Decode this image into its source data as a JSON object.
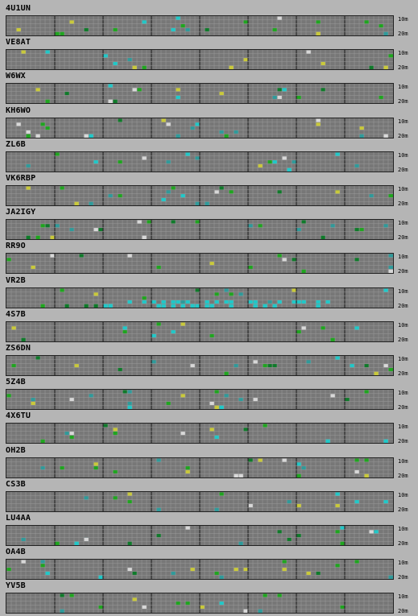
{
  "band_labels": {
    "top": "10m",
    "bottom": "20m"
  },
  "colors": {
    "background": "#b5b5b5",
    "grid_fill": "#777777",
    "grid_line": "#9a9a9a",
    "hour_divider": "#2a2a2a",
    "spot_green": "#1fa51f",
    "spot_dark_green": "#0f7a2a",
    "spot_yellow": "#c9c93a",
    "spot_cyan": "#20c8c8",
    "spot_white": "#d8d8d8",
    "spot_teal": "#2f9a9a"
  },
  "stations": [
    {
      "call": "4U1UN",
      "spots": []
    },
    {
      "call": "VE8AT",
      "spots": []
    },
    {
      "call": "W6WX",
      "spots": []
    },
    {
      "call": "KH6WO",
      "spots": []
    },
    {
      "call": "ZL6B",
      "spots": []
    },
    {
      "call": "VK6RBP",
      "spots": []
    },
    {
      "call": "JA2IGY",
      "spots": []
    },
    {
      "call": "RR9O",
      "spots": []
    },
    {
      "call": "VR2B",
      "spots": []
    },
    {
      "call": "4S7B",
      "spots": []
    },
    {
      "call": "ZS6DN",
      "spots": []
    },
    {
      "call": "5Z4B",
      "spots": []
    },
    {
      "call": "4X6TU",
      "spots": []
    },
    {
      "call": "OH2B",
      "spots": []
    },
    {
      "call": "CS3B",
      "spots": []
    },
    {
      "call": "LU4AA",
      "spots": []
    },
    {
      "call": "OA4B",
      "spots": []
    },
    {
      "call": "YV5B",
      "spots": []
    }
  ]
}
